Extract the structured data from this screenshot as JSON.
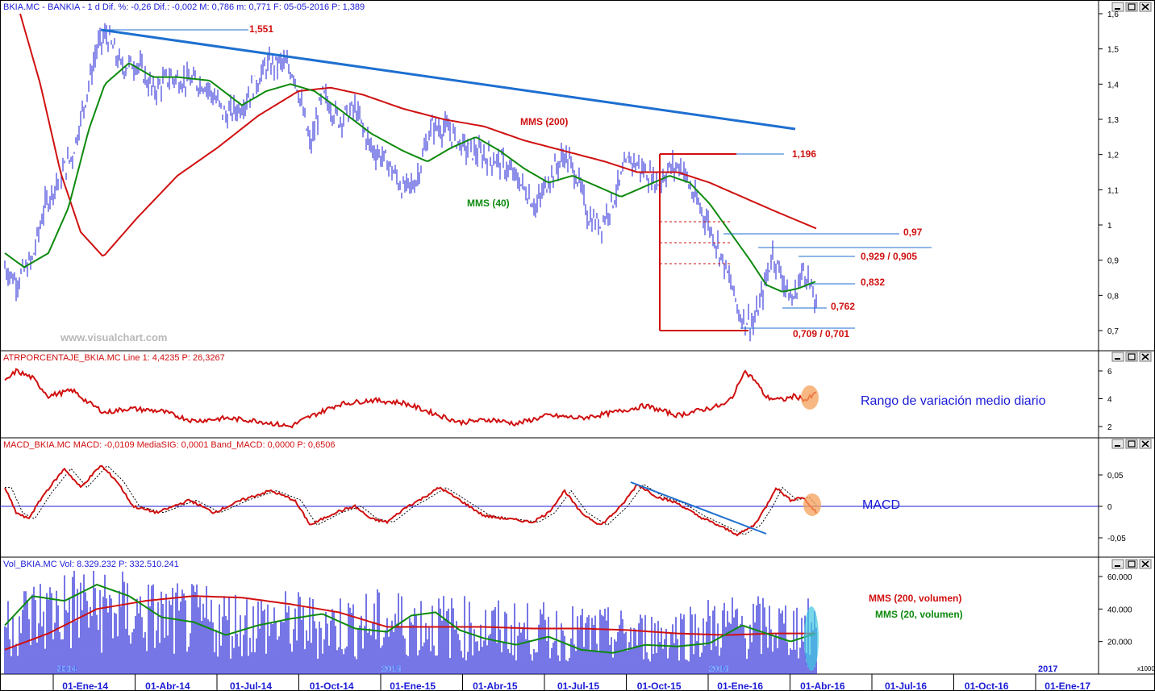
{
  "colors": {
    "price": "#1b1bd6",
    "red": "#d01010",
    "green": "#0e8a0e",
    "trend": "#1d6fd0",
    "black": "#000000",
    "frame": "#000000",
    "highlight": "#f5a05a",
    "volume_highlight": "#3fc8e0"
  },
  "x_axis": {
    "labels": [
      "01-Ene-14",
      "01-Abr-14",
      "01-Jul-14",
      "01-Oct-14",
      "01-Ene-15",
      "01-Abr-15",
      "01-Jul-15",
      "01-Oct-15",
      "01-Ene-16",
      "01-Abr-16",
      "01-Jul-16",
      "01-Oct-16",
      "01-Ene-17"
    ],
    "year_marks": [
      "2014",
      "2015",
      "2016",
      "2017"
    ]
  },
  "panels": {
    "price": {
      "header": "BKIA.MC - BANKIA - 1 d  Dif. %: -0,26  Dif.: -0,002  M: 0,786  m: 0,771  F: 05-05-2016  P: 1,389",
      "yticks": [
        "1,6",
        "1,5",
        "1,4",
        "1,3",
        "1,2",
        "1,1",
        "1",
        "0,9",
        "0,8",
        "0,7"
      ],
      "watermark": "www.visualchart.com",
      "labels": {
        "mms200": "MMS (200)",
        "mms40": "MMS (40)",
        "lvl1551": "1,551",
        "lvl1196": "1,196",
        "lvl097": "0,97",
        "lvl0929": "0,929 / 0,905",
        "lvl0832": "0,832",
        "lvl0762": "0,762",
        "lvl0709": "0,709 / 0,701"
      }
    },
    "atr": {
      "header": "ATRPORCENTAJE_BKIA.MC Line 1: 4,4235  P: 26,3267",
      "yticks": [
        "6",
        "4",
        "2"
      ],
      "annotation": "Rango de variación medio diario"
    },
    "macd": {
      "header": "MACD_BKIA.MC MACD: -0,0109  MediaSIG: 0,0001  Band_MACD: 0,0000  P: 0,6506",
      "yticks": [
        "0,05",
        "0",
        "-0,05"
      ],
      "annotation": "MACD"
    },
    "volume": {
      "header": "Vol_BKIA.MC Vol: 8.329.232  P: 332.510.241",
      "yticks": [
        "60.000",
        "40.000",
        "20.000"
      ],
      "unit": "x1000",
      "mms200_label": "MMS (200, volumen)",
      "mms20_label": "MMS (20, volumen)"
    }
  },
  "chart_data": [
    {
      "type": "line",
      "panel": "price",
      "x": [
        "01-Ene-14",
        "01-Abr-14",
        "01-Jul-14",
        "01-Oct-14",
        "01-Ene-15",
        "01-Abr-15",
        "01-Jul-15",
        "01-Oct-15",
        "01-Ene-16",
        "01-Abr-16"
      ],
      "ylim": [
        0.66,
        1.61
      ],
      "series": [
        {
          "name": "",
          "values": [
            1.26,
            1.42,
            1.38,
            1.33,
            1.13,
            1.25,
            1.14,
            1.13,
            0.82,
            0.8
          ]
        },
        {
          "name": "MMS (200)",
          "values": [
            1.04,
            0.95,
            1.18,
            1.38,
            1.38,
            1.29,
            1.2,
            1.15,
            1.08,
            1.0
          ]
        },
        {
          "name": "MMS (40)",
          "values": [
            1.16,
            1.46,
            1.37,
            1.4,
            1.2,
            1.23,
            1.11,
            1.14,
            0.88,
            0.84
          ]
        }
      ],
      "levels": [
        1.551,
        1.196,
        0.97,
        0.929,
        0.905,
        0.832,
        0.762,
        0.709,
        0.701
      ]
    },
    {
      "type": "line",
      "panel": "atr",
      "x": [
        "01-Ene-14",
        "01-Abr-14",
        "01-Jul-14",
        "01-Oct-14",
        "01-Ene-15",
        "01-Abr-15",
        "01-Jul-15",
        "01-Oct-15",
        "01-Ene-16",
        "01-Abr-16"
      ],
      "ylim": [
        1.5,
        6.7
      ],
      "series": [
        {
          "name": "ATRPORCENTAJE_BKIA.MC",
          "values": [
            4.4,
            3.0,
            2.4,
            2.3,
            3.7,
            2.4,
            2.9,
            3.3,
            4.9,
            4.4
          ]
        }
      ]
    },
    {
      "type": "line",
      "panel": "macd",
      "x": [
        "01-Ene-14",
        "01-Abr-14",
        "01-Jul-14",
        "01-Oct-14",
        "01-Ene-15",
        "01-Abr-15",
        "01-Jul-15",
        "01-Oct-15",
        "01-Ene-16",
        "01-Abr-16"
      ],
      "ylim": [
        -0.08,
        0.08
      ],
      "series": [
        {
          "name": "MACD",
          "values": [
            0.01,
            0.0,
            0.005,
            -0.015,
            0.01,
            0.0,
            0.0,
            0.03,
            -0.05,
            -0.01
          ]
        }
      ]
    },
    {
      "type": "bar",
      "panel": "volume",
      "x": [
        "01-Ene-14",
        "01-Abr-14",
        "01-Jul-14",
        "01-Oct-14",
        "01-Ene-15",
        "01-Abr-15",
        "01-Jul-15",
        "01-Oct-15",
        "01-Ene-16",
        "01-Abr-16"
      ],
      "ylim": [
        0,
        62000
      ],
      "series": [
        {
          "name": "Vol_BKIA.MC",
          "values": [
            40000,
            30000,
            28000,
            27000,
            28000,
            25000,
            24000,
            23000,
            27000,
            26000
          ]
        },
        {
          "name": "MMS (200, volumen)",
          "values": [
            34000,
            45000,
            48000,
            45000,
            32000,
            29000,
            29000,
            28000,
            25000,
            25000
          ]
        },
        {
          "name": "MMS (20, volumen)",
          "values": [
            42000,
            35000,
            30000,
            32000,
            36000,
            20000,
            27000,
            19000,
            32000,
            25000
          ]
        }
      ]
    }
  ]
}
